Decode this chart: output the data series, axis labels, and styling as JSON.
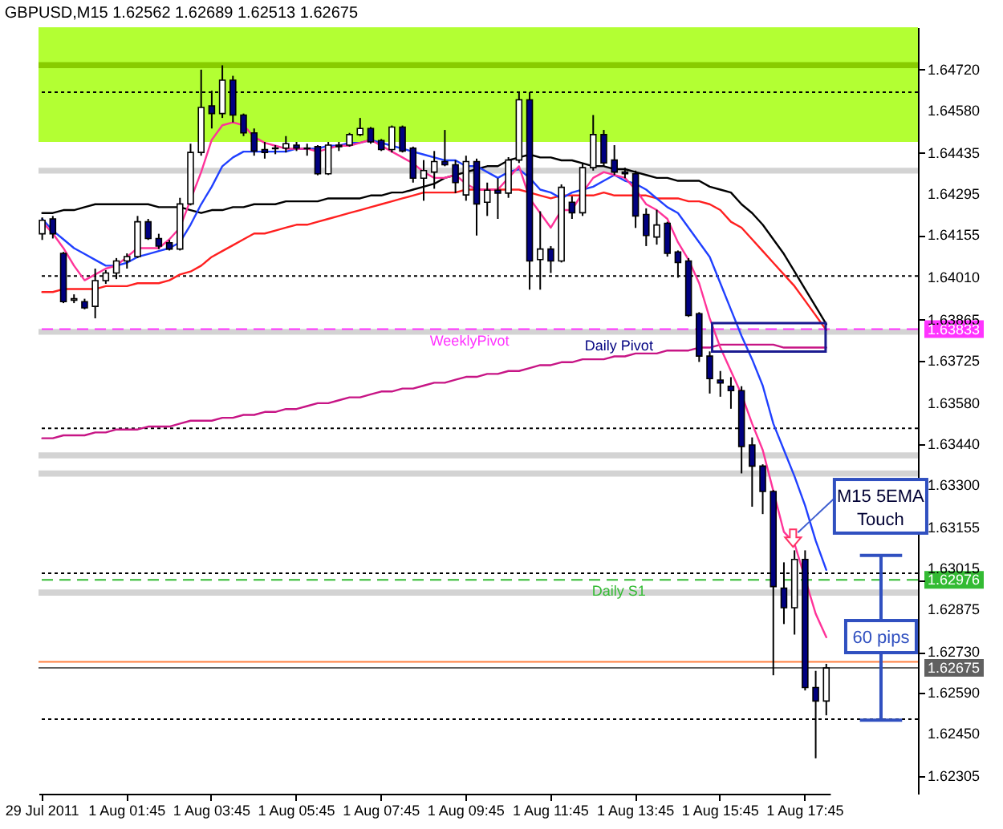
{
  "chart_data": {
    "type": "candlestick",
    "title": "GBPUSD,M15  1.62562 1.62689 1.62513 1.62675",
    "categories": [
      "29 Jul 2011",
      null,
      null,
      null,
      null,
      null,
      null,
      null,
      "1 Aug 01:45",
      null,
      null,
      null,
      null,
      null,
      null,
      null,
      "1 Aug 03:45",
      null,
      null,
      null,
      null,
      null,
      null,
      null,
      "1 Aug 05:45",
      null,
      null,
      null,
      null,
      null,
      null,
      null,
      "1 Aug 07:45",
      null,
      null,
      null,
      null,
      null,
      null,
      null,
      "1 Aug 09:45",
      null,
      null,
      null,
      null,
      null,
      null,
      null,
      "1 Aug 11:45",
      null,
      null,
      null,
      null,
      null,
      null,
      null,
      "1 Aug 13:45",
      null,
      null,
      null,
      null,
      null,
      null,
      null,
      "1 Aug 15:45",
      null,
      null,
      null,
      null,
      null,
      null,
      null,
      "1 Aug 17:45",
      null,
      null
    ],
    "ohlc": [
      [
        1.64159,
        1.64215,
        1.64138,
        1.64205
      ],
      [
        1.6421,
        1.6422,
        1.64143,
        1.64159
      ],
      [
        1.64092,
        1.64097,
        1.63922,
        1.63927
      ],
      [
        1.63932,
        1.63952,
        1.63922,
        1.63937
      ],
      [
        1.63927,
        1.63937,
        1.63901,
        1.63906
      ],
      [
        1.63911,
        1.6404,
        1.6387,
        1.63999
      ],
      [
        1.63999,
        1.64035,
        1.63988,
        1.64025
      ],
      [
        1.64025,
        1.64076,
        1.64004,
        1.64066
      ],
      [
        1.64066,
        1.64092,
        1.6404,
        1.64081
      ],
      [
        1.64081,
        1.6422,
        1.64076,
        1.642
      ],
      [
        1.642,
        1.6421,
        1.64138,
        1.64143
      ],
      [
        1.64143,
        1.64159,
        1.64107,
        1.64117
      ],
      [
        1.64128,
        1.64138,
        1.64102,
        1.64107
      ],
      [
        1.64107,
        1.64282,
        1.64102,
        1.64261
      ],
      [
        1.64261,
        1.64467,
        1.64256,
        1.64437
      ],
      [
        1.64437,
        1.6472,
        1.64426,
        1.64591
      ],
      [
        1.64596,
        1.64648,
        1.64519,
        1.6457
      ],
      [
        1.6457,
        1.64735,
        1.64555,
        1.64684
      ],
      [
        1.64684,
        1.64699,
        1.6454,
        1.64565
      ],
      [
        1.64565,
        1.6457,
        1.64493,
        1.64504
      ],
      [
        1.64504,
        1.64519,
        1.64426,
        1.64442
      ],
      [
        1.64447,
        1.64473,
        1.64416,
        1.64437
      ],
      [
        1.64452,
        1.64462,
        1.64431,
        1.6445
      ],
      [
        1.64452,
        1.64493,
        1.64437,
        1.64467
      ],
      [
        1.64462,
        1.64473,
        1.64442,
        1.64452
      ],
      [
        1.64452,
        1.64467,
        1.64426,
        1.6445
      ],
      [
        1.64457,
        1.64462,
        1.64359,
        1.64364
      ],
      [
        1.64364,
        1.64473,
        1.6436,
        1.64462
      ],
      [
        1.64462,
        1.64473,
        1.64442,
        1.64457
      ],
      [
        1.64462,
        1.64504,
        1.64457,
        1.64498
      ],
      [
        1.64498,
        1.64555,
        1.64493,
        1.64519
      ],
      [
        1.64519,
        1.64524,
        1.64467,
        1.64473
      ],
      [
        1.64478,
        1.64483,
        1.64442,
        1.64447
      ],
      [
        1.64447,
        1.64529,
        1.64437,
        1.64524
      ],
      [
        1.64524,
        1.64529,
        1.64437,
        1.64442
      ],
      [
        1.64452,
        1.64457,
        1.64334,
        1.64349
      ],
      [
        1.64349,
        1.64411,
        1.64272,
        1.64375
      ],
      [
        1.6437,
        1.64442,
        1.64313,
        1.64406
      ],
      [
        1.64406,
        1.64514,
        1.6439,
        1.64395
      ],
      [
        1.64395,
        1.64411,
        1.64298,
        1.64334
      ],
      [
        1.64292,
        1.64426,
        1.64272,
        1.64406
      ],
      [
        1.64406,
        1.64416,
        1.64153,
        1.64261
      ],
      [
        1.64267,
        1.64334,
        1.6422,
        1.64308
      ],
      [
        1.64308,
        1.64349,
        1.6421,
        1.64298
      ],
      [
        1.64298,
        1.64421,
        1.64282,
        1.64411
      ],
      [
        1.64411,
        1.64643,
        1.64401,
        1.64617
      ],
      [
        1.64617,
        1.64643,
        1.63968,
        1.64066
      ],
      [
        1.64071,
        1.64236,
        1.63968,
        1.64107
      ],
      [
        1.64107,
        1.64117,
        1.64025,
        1.64066
      ],
      [
        1.64066,
        1.64328,
        1.64061,
        1.64318
      ],
      [
        1.64267,
        1.64287,
        1.6421,
        1.64231
      ],
      [
        1.64231,
        1.64401,
        1.6422,
        1.64385
      ],
      [
        1.64385,
        1.64565,
        1.64375,
        1.64498
      ],
      [
        1.64498,
        1.64514,
        1.6439,
        1.64401
      ],
      [
        1.64411,
        1.64462,
        1.6436,
        1.6437
      ],
      [
        1.6437,
        1.64385,
        1.64349,
        1.64364
      ],
      [
        1.64364,
        1.64375,
        1.64179,
        1.6422
      ],
      [
        1.64225,
        1.64246,
        1.64117,
        1.64153
      ],
      [
        1.64148,
        1.64241,
        1.64122,
        1.64189
      ],
      [
        1.64195,
        1.642,
        1.64081,
        1.64092
      ],
      [
        1.64097,
        1.64102,
        1.64009,
        1.64061
      ],
      [
        1.64066,
        1.64076,
        1.63875,
        1.6388
      ],
      [
        1.63886,
        1.63891,
        1.63721,
        1.63741
      ],
      [
        1.63741,
        1.63757,
        1.63613,
        1.63664
      ],
      [
        1.63659,
        1.6369,
        1.63602,
        1.63649
      ],
      [
        1.63638,
        1.63669,
        1.63561,
        1.63623
      ],
      [
        1.63623,
        1.63638,
        1.6334,
        1.63432
      ],
      [
        1.63437,
        1.63463,
        1.63226,
        1.63365
      ],
      [
        1.63365,
        1.63371,
        1.63201,
        1.63278
      ],
      [
        1.63278,
        1.63283,
        1.6265,
        1.62953
      ],
      [
        1.62948,
        1.63036,
        1.62825,
        1.62881
      ],
      [
        1.62881,
        1.63077,
        1.62789,
        1.63046
      ],
      [
        1.63046,
        1.63077,
        1.62598,
        1.62608
      ],
      [
        1.62608,
        1.62665,
        1.62366,
        1.62562
      ],
      [
        1.62562,
        1.62689,
        1.62513,
        1.62675
      ]
    ],
    "colors": [
      "#ffffff",
      "#000080",
      "#000080",
      "#ffffff",
      "#000080",
      "#ffffff",
      "#ffffff",
      "#ffffff",
      "#ffffff",
      "#ffffff",
      "#000080",
      "#000080",
      "#000080",
      "#ffffff",
      "#ffffff",
      "#ffffff",
      "#000080",
      "#ffffff",
      "#000080",
      "#000080",
      "#000080",
      "#000080",
      "#000080",
      "#ffffff",
      "#000080",
      "#000080",
      "#000080",
      "#ffffff",
      "#000080",
      "#ffffff",
      "#ffffff",
      "#000080",
      "#000080",
      "#ffffff",
      "#000080",
      "#000080",
      "#ffffff",
      "#ffffff",
      "#000080",
      "#000080",
      "#ffffff",
      "#000080",
      "#ffffff",
      "#000080",
      "#ffffff",
      "#ffffff",
      "#000080",
      "#ffffff",
      "#000080",
      "#ffffff",
      "#000080",
      "#ffffff",
      "#ffffff",
      "#000080",
      "#000080",
      "#000080",
      "#000080",
      "#000080",
      "#ffffff",
      "#000080",
      "#000080",
      "#000080",
      "#000080",
      "#000080",
      "#000080",
      "#000080",
      "#000080",
      "#000080",
      "#000080",
      "#000080",
      "#000080",
      "#ffffff",
      "#000080",
      "#000080",
      "#ffffff"
    ],
    "series": [
      {
        "type": "line",
        "color": "#c71585",
        "values": [
          1.6346,
          1.6346,
          1.6347,
          1.6347,
          1.6347,
          1.6348,
          1.6348,
          1.6349,
          1.6349,
          1.6349,
          1.635,
          1.635,
          1.635,
          1.6351,
          1.6352,
          1.6352,
          1.6352,
          1.6353,
          1.6353,
          1.6354,
          1.6354,
          1.6355,
          1.6355,
          1.6356,
          1.6356,
          1.6357,
          1.6358,
          1.6358,
          1.6359,
          1.636,
          1.636,
          1.6361,
          1.6362,
          1.6362,
          1.6363,
          1.6363,
          1.6364,
          1.6365,
          1.6365,
          1.6366,
          1.6367,
          1.6367,
          1.6368,
          1.6368,
          1.6369,
          1.6369,
          1.637,
          1.6371,
          1.6371,
          1.6372,
          1.6372,
          1.6373,
          1.6373,
          1.6373,
          1.6374,
          1.6374,
          1.6375,
          1.6375,
          1.6375,
          1.6376,
          1.6376,
          1.6376,
          1.6377,
          1.6377,
          1.6378,
          1.6378,
          1.6378,
          1.6378,
          1.6378,
          1.6378,
          1.6377,
          1.6377,
          1.6377,
          1.6377,
          1.6377
        ]
      },
      {
        "type": "line",
        "color": "#000000",
        "values": [
          1.6423,
          1.6423,
          1.6424,
          1.6424,
          1.6425,
          1.6426,
          1.6426,
          1.6426,
          1.6426,
          1.6426,
          1.6426,
          1.6425,
          1.6425,
          1.6425,
          1.6424,
          1.6423,
          1.6424,
          1.6424,
          1.6425,
          1.6425,
          1.6426,
          1.6426,
          1.6426,
          1.6427,
          1.6427,
          1.6427,
          1.6427,
          1.6428,
          1.6428,
          1.6428,
          1.6428,
          1.6429,
          1.6429,
          1.643,
          1.643,
          1.6431,
          1.6432,
          1.6433,
          1.6435,
          1.6436,
          1.6437,
          1.6438,
          1.6439,
          1.6439,
          1.6441,
          1.6442,
          1.6443,
          1.6442,
          1.6442,
          1.6441,
          1.6441,
          1.644,
          1.6439,
          1.6439,
          1.6438,
          1.6438,
          1.6437,
          1.6436,
          1.6435,
          1.6435,
          1.6434,
          1.6434,
          1.6434,
          1.6432,
          1.6431,
          1.643,
          1.6426,
          1.6423,
          1.6419,
          1.6414,
          1.6409,
          1.6403,
          1.6397,
          1.6391,
          1.6385
        ]
      },
      {
        "type": "line",
        "color": "#ff2020",
        "values": [
          1.6396,
          1.6396,
          1.6397,
          1.6397,
          1.6397,
          1.6397,
          1.6398,
          1.6398,
          1.6398,
          1.6399,
          1.6399,
          1.6399,
          1.64,
          1.6402,
          1.6403,
          1.6405,
          1.6408,
          1.641,
          1.6412,
          1.6414,
          1.6416,
          1.6416,
          1.6417,
          1.6418,
          1.6419,
          1.6419,
          1.642,
          1.6421,
          1.6422,
          1.6423,
          1.6424,
          1.6425,
          1.6426,
          1.6427,
          1.6428,
          1.6429,
          1.643,
          1.643,
          1.643,
          1.643,
          1.6431,
          1.6431,
          1.6431,
          1.6431,
          1.6431,
          1.6431,
          1.643,
          1.6429,
          1.6428,
          1.6429,
          1.6429,
          1.6429,
          1.6429,
          1.643,
          1.6429,
          1.6429,
          1.6429,
          1.6429,
          1.6428,
          1.6428,
          1.6428,
          1.6427,
          1.6427,
          1.6426,
          1.6424,
          1.642,
          1.6418,
          1.6414,
          1.641,
          1.6406,
          1.6402,
          1.6398,
          1.6393,
          1.6388,
          1.6383
        ]
      },
      {
        "type": "line",
        "color": "#2040ff",
        "values": [
          1.6421,
          1.6417,
          1.6414,
          1.6411,
          1.6409,
          1.6407,
          1.6405,
          1.6405,
          1.6406,
          1.6408,
          1.6409,
          1.641,
          1.6411,
          1.6413,
          1.6419,
          1.6426,
          1.6432,
          1.6439,
          1.6442,
          1.6444,
          1.6444,
          1.6444,
          1.6444,
          1.6444,
          1.6445,
          1.6445,
          1.6445,
          1.6446,
          1.6446,
          1.6447,
          1.6447,
          1.6448,
          1.6447,
          1.6446,
          1.6445,
          1.6444,
          1.6443,
          1.6442,
          1.6441,
          1.6441,
          1.6439,
          1.6439,
          1.6437,
          1.6435,
          1.6437,
          1.6438,
          1.6435,
          1.6431,
          1.643,
          1.6428,
          1.643,
          1.6431,
          1.6432,
          1.6434,
          1.6436,
          1.6434,
          1.6433,
          1.6431,
          1.6428,
          1.6425,
          1.6423,
          1.6418,
          1.6413,
          1.6408,
          1.6399,
          1.639,
          1.6381,
          1.6373,
          1.6364,
          1.6351,
          1.6342,
          1.6333,
          1.6323,
          1.6311,
          1.6301
        ]
      },
      {
        "type": "line",
        "color": "#ff3399",
        "values": [
          1.642,
          1.6416,
          1.6411,
          1.6405,
          1.64,
          1.6402,
          1.6404,
          1.6405,
          1.6408,
          1.6411,
          1.6411,
          1.6411,
          1.6414,
          1.6418,
          null,
          1.6437,
          1.6448,
          1.6453,
          1.6454,
          1.6453,
          1.6449,
          1.6447,
          1.6446,
          1.6445,
          1.6445,
          1.6445,
          1.6444,
          1.6445,
          1.6446,
          1.6446,
          1.6447,
          1.6448,
          1.6446,
          1.6444,
          1.6442,
          1.644,
          1.6437,
          1.6435,
          1.6435,
          1.6436,
          1.6433,
          1.6431,
          1.6431,
          1.6431,
          1.6435,
          1.6439,
          1.6428,
          1.6423,
          1.6418,
          1.6424,
          1.6424,
          1.643,
          1.6435,
          1.6437,
          1.6436,
          1.6435,
          1.6431,
          1.6426,
          1.6424,
          1.6421,
          1.6413,
          1.6407,
          1.6399,
          1.6387,
          1.6377,
          1.6369,
          1.6361,
          1.6351,
          1.6342,
          1.6328,
          1.6314,
          1.631,
          null,
          1.6286,
          1.6278
        ]
      }
    ],
    "ylim": [
      1.62245,
      1.64865
    ],
    "yticks": [
      {
        "value": 1.6472,
        "label": "1.64720"
      },
      {
        "value": 1.6458,
        "label": "1.64580"
      },
      1.64435,
      1.64295,
      1.64155,
      {
        "value": 1.6401,
        "label": "1.64010"
      },
      1.63865,
      1.63833,
      1.63725,
      {
        "value": 1.6358,
        "label": "1.63580"
      },
      {
        "value": 1.6344,
        "label": "1.63440"
      },
      {
        "value": 1.633,
        "label": "1.63300"
      },
      1.63155,
      1.63015,
      1.62976,
      1.62875,
      {
        "value": 1.6273,
        "label": "1.62730"
      },
      1.62675,
      {
        "value": 1.6259,
        "label": "1.62590"
      },
      {
        "value": 1.6245,
        "label": "1.62450"
      },
      1.62305
    ],
    "bands": [
      {
        "axis": "y",
        "from": 1.64473,
        "to": 1.64865,
        "color": "#b3ff33"
      },
      {
        "axis": "y",
        "from": 1.64725,
        "to": 1.64746,
        "color": "#88cc00"
      },
      {
        "axis": "y",
        "from": 1.64365,
        "to": 1.64385,
        "color": "#d3d3d3"
      },
      {
        "axis": "y",
        "from": 1.63814,
        "to": 1.63834,
        "color": "#d3d3d3",
        "label": "Daily Pivot"
      },
      {
        "axis": "y",
        "from": 1.63391,
        "to": 1.63412,
        "color": "#d3d3d3"
      },
      {
        "axis": "y",
        "from": 1.63329,
        "to": 1.6335,
        "color": "#d3d3d3"
      },
      {
        "axis": "y",
        "from": 1.62922,
        "to": 1.62943,
        "color": "#d3d3d3"
      }
    ],
    "ref_lines": [
      {
        "axis": "y",
        "value": 1.64643,
        "color": "#000000",
        "line_style": "dotted"
      },
      {
        "axis": "y",
        "value": 1.64015,
        "color": "#000000",
        "line_style": "dotted"
      },
      {
        "axis": "y",
        "value": 1.63494,
        "color": "#000000",
        "line_style": "dotted"
      },
      {
        "axis": "y",
        "value": 1.62999,
        "color": "#000000",
        "line_style": "dotted"
      },
      {
        "axis": "y",
        "value": 1.625,
        "color": "#000000",
        "line_style": "dotted"
      },
      {
        "axis": "y",
        "value": 1.63833,
        "color": "#ff33ff",
        "line_style": "dashed",
        "label": "WeeklyPivot"
      },
      {
        "axis": "y",
        "value": 1.62976,
        "color": "#33bb33",
        "line_style": "dashed",
        "label": "Daily S1"
      },
      {
        "axis": "y",
        "value": 1.62696,
        "color": "#ff8040",
        "line_style": "solid"
      },
      {
        "axis": "y",
        "value": 1.62675,
        "color": "#606060",
        "line_style": "solid"
      }
    ],
    "annotations": [
      "M15 5EMA Touch",
      "60 pips"
    ]
  }
}
